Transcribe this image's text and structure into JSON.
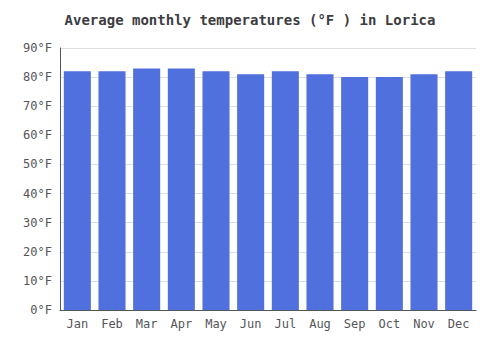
{
  "chart_data": {
    "type": "bar",
    "title": "Average monthly temperatures (°F ) in Lorica",
    "categories": [
      "Jan",
      "Feb",
      "Mar",
      "Apr",
      "May",
      "Jun",
      "Jul",
      "Aug",
      "Sep",
      "Oct",
      "Nov",
      "Dec"
    ],
    "values": [
      82,
      82,
      83,
      83,
      82,
      81,
      82,
      81,
      80,
      80,
      81,
      82
    ],
    "ylim": [
      0,
      90
    ],
    "yticks": [
      {
        "value": 0,
        "label": "0°F"
      },
      {
        "value": 10,
        "label": "10°F"
      },
      {
        "value": 20,
        "label": "20°F"
      },
      {
        "value": 30,
        "label": "30°F"
      },
      {
        "value": 40,
        "label": "40°F"
      },
      {
        "value": 50,
        "label": "50°F"
      },
      {
        "value": 60,
        "label": "60°F"
      },
      {
        "value": 70,
        "label": "70°F"
      },
      {
        "value": 80,
        "label": "80°F"
      },
      {
        "value": 90,
        "label": "90°F"
      }
    ],
    "grid": true
  }
}
